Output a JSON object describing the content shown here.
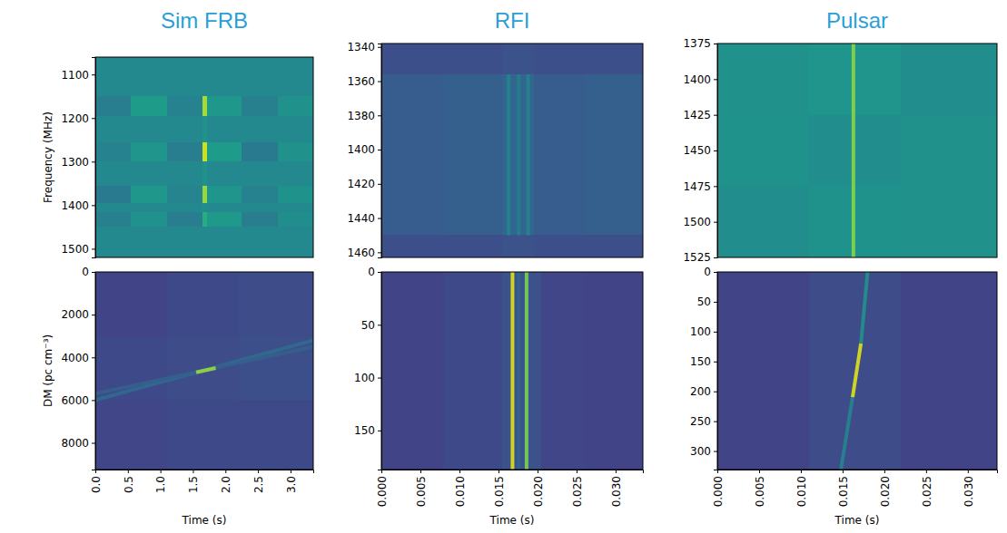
{
  "chart_data": [
    {
      "type": "heatmap",
      "title": "Sim FRB",
      "ylabel": "Frequency (MHz)",
      "tick_labels": "y",
      "xlim": [
        0,
        3.35
      ],
      "ylim": [
        1520,
        1060
      ],
      "yticks": [
        1100,
        1200,
        1300,
        1400,
        1500
      ],
      "zlim": [
        0,
        1
      ],
      "x_edges": [
        0,
        0.55,
        1.1,
        1.65,
        1.72,
        2.25,
        2.8,
        3.35
      ],
      "y_edges": [
        1060,
        1150,
        1195,
        1255,
        1300,
        1355,
        1395,
        1415,
        1450,
        1520
      ],
      "z": [
        [
          0.47,
          0.47,
          0.47,
          0.47,
          0.47,
          0.47,
          0.47
        ],
        [
          0.42,
          0.55,
          0.44,
          0.86,
          0.53,
          0.43,
          0.5
        ],
        [
          0.47,
          0.47,
          0.47,
          0.5,
          0.47,
          0.47,
          0.47
        ],
        [
          0.44,
          0.52,
          0.42,
          0.92,
          0.55,
          0.41,
          0.5
        ],
        [
          0.47,
          0.47,
          0.47,
          0.5,
          0.47,
          0.47,
          0.47
        ],
        [
          0.41,
          0.53,
          0.45,
          0.84,
          0.52,
          0.44,
          0.51
        ],
        [
          0.47,
          0.47,
          0.47,
          0.49,
          0.47,
          0.47,
          0.47
        ],
        [
          0.43,
          0.5,
          0.42,
          0.62,
          0.54,
          0.42,
          0.49
        ],
        [
          0.47,
          0.47,
          0.47,
          0.47,
          0.47,
          0.47,
          0.47
        ]
      ]
    },
    {
      "type": "heatmap",
      "title": "RFI",
      "tick_labels": "y",
      "xlim": [
        0,
        0.0335
      ],
      "ylim": [
        1463,
        1338
      ],
      "yticks": [
        1340,
        1360,
        1380,
        1400,
        1420,
        1440,
        1460
      ],
      "zlim": [
        0,
        1
      ],
      "x_edges": [
        0,
        0.008,
        0.0155,
        0.0195,
        0.026,
        0.0335
      ],
      "y_edges": [
        1338,
        1356,
        1450,
        1463
      ],
      "z": [
        [
          0.24,
          0.24,
          0.25,
          0.24,
          0.24
        ],
        [
          0.29,
          0.3,
          0.33,
          0.29,
          0.3
        ],
        [
          0.24,
          0.24,
          0.25,
          0.24,
          0.24
        ]
      ],
      "streaks": [
        {
          "x": [
            0.0163,
            0.0163
          ],
          "y": [
            1356,
            1450
          ],
          "value": 0.45
        },
        {
          "x": [
            0.0176,
            0.0176
          ],
          "y": [
            1356,
            1450
          ],
          "value": 0.42
        },
        {
          "x": [
            0.0188,
            0.0188
          ],
          "y": [
            1356,
            1450
          ],
          "value": 0.45
        }
      ]
    },
    {
      "type": "heatmap",
      "title": "Pulsar",
      "tick_labels": "y",
      "xlim": [
        0,
        0.0335
      ],
      "ylim": [
        1525,
        1375
      ],
      "yticks": [
        1375,
        1400,
        1425,
        1450,
        1475,
        1500,
        1525
      ],
      "zlim": [
        0,
        1
      ],
      "x_edges": [
        0,
        0.011,
        0.022,
        0.0335
      ],
      "y_edges": [
        1375,
        1425,
        1475,
        1525
      ],
      "z": [
        [
          0.5,
          0.52,
          0.49
        ],
        [
          0.51,
          0.49,
          0.5
        ],
        [
          0.49,
          0.51,
          0.5
        ]
      ],
      "streaks": [
        {
          "x": [
            0.0163,
            0.0163
          ],
          "y": [
            1375,
            1525
          ],
          "value": 0.82
        }
      ]
    },
    {
      "type": "heatmap",
      "xlabel": "Time (s)",
      "ylabel": "DM (pc cm⁻³)",
      "xlim": [
        0,
        3.35
      ],
      "ylim": [
        9250,
        0
      ],
      "xticks": [
        {
          "value": 0,
          "label": "0.0"
        },
        0.5,
        {
          "value": 1,
          "label": "1.0"
        },
        1.5,
        {
          "value": 2,
          "label": "2.0"
        },
        2.5,
        {
          "value": 3,
          "label": "3.0"
        }
      ],
      "yticks": [
        0,
        2000,
        4000,
        6000,
        8000
      ],
      "zlim": [
        0,
        1
      ],
      "x_edges": [
        0,
        1.1,
        2.2,
        3.35
      ],
      "y_edges": [
        0,
        3000,
        6000,
        9250
      ],
      "z": [
        [
          0.2,
          0.22,
          0.23
        ],
        [
          0.22,
          0.23,
          0.24
        ],
        [
          0.21,
          0.22,
          0.22
        ]
      ],
      "streaks": [
        {
          "x": [
            0,
            3.35
          ],
          "y": [
            6000,
            3200
          ],
          "value": 0.34
        },
        {
          "x": [
            0,
            3.35
          ],
          "y": [
            5700,
            3500
          ],
          "value": 0.3
        },
        {
          "x": [
            1.55,
            1.85
          ],
          "y": [
            4700,
            4500
          ],
          "value": 0.85
        }
      ]
    },
    {
      "type": "heatmap",
      "xlabel": "Time (s)",
      "xlim": [
        0,
        0.0335
      ],
      "ylim": [
        187,
        0
      ],
      "xticks": [
        {
          "value": 0,
          "label": "0.000"
        },
        0.005,
        {
          "value": 0.01,
          "label": "0.010"
        },
        0.015,
        {
          "value": 0.02,
          "label": "0.020"
        },
        0.025,
        {
          "value": 0.03,
          "label": "0.030"
        }
      ],
      "yticks": [
        0,
        50,
        100,
        150
      ],
      "zlim": [
        0,
        1
      ],
      "x_edges": [
        0,
        0.008,
        0.0155,
        0.0205,
        0.026,
        0.0335
      ],
      "y_edges": [
        0,
        187
      ],
      "z": [
        [
          0.2,
          0.22,
          0.25,
          0.21,
          0.2
        ]
      ],
      "streaks": [
        {
          "x": [
            0.0168,
            0.0168
          ],
          "y": [
            0,
            187
          ],
          "value": 0.95
        },
        {
          "x": [
            0.0186,
            0.0186
          ],
          "y": [
            0,
            187
          ],
          "value": 0.8
        },
        {
          "x": [
            0.0176,
            0.0176
          ],
          "y": [
            0,
            187
          ],
          "value": 0.32
        }
      ]
    },
    {
      "type": "heatmap",
      "xlabel": "Time (s)",
      "xlim": [
        0,
        0.0335
      ],
      "ylim": [
        331,
        0
      ],
      "xticks": [
        {
          "value": 0,
          "label": "0.000"
        },
        0.005,
        {
          "value": 0.01,
          "label": "0.010"
        },
        0.015,
        {
          "value": 0.02,
          "label": "0.020"
        },
        0.025,
        {
          "value": 0.03,
          "label": "0.030"
        }
      ],
      "yticks": [
        0,
        50,
        100,
        150,
        200,
        250,
        300
      ],
      "zlim": [
        0,
        1
      ],
      "x_edges": [
        0,
        0.011,
        0.022,
        0.0335
      ],
      "y_edges": [
        0,
        331
      ],
      "z": [
        [
          0.2,
          0.23,
          0.2
        ]
      ],
      "streaks": [
        {
          "x": [
            0.018,
            0.0172
          ],
          "y": [
            0,
            120
          ],
          "value": 0.5
        },
        {
          "x": [
            0.0172,
            0.0162
          ],
          "y": [
            120,
            210
          ],
          "value": 0.95
        },
        {
          "x": [
            0.0162,
            0.0148
          ],
          "y": [
            210,
            331
          ],
          "value": 0.45
        }
      ]
    }
  ]
}
